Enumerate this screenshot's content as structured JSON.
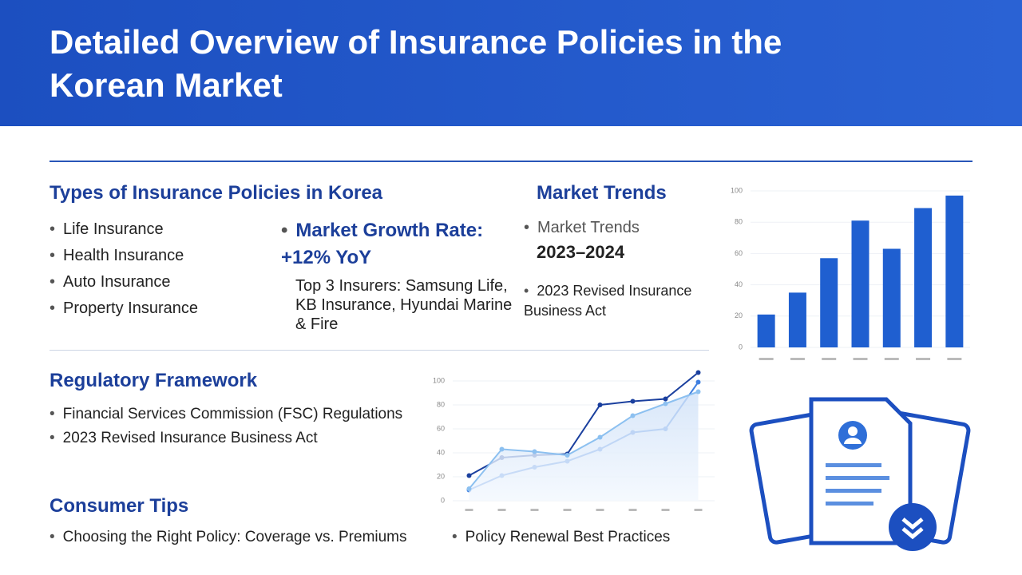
{
  "header": {
    "title": "Detailed Overview of Insurance Policies in the Korean Market"
  },
  "types": {
    "heading": "Types of Insurance Policies in Korea",
    "items": [
      "Life Insurance",
      "Health Insurance",
      "Auto Insurance",
      "Property Insurance"
    ]
  },
  "growth": {
    "headline": "Market Growth Rate: +12% YoY",
    "detail": "Top 3 Insurers: Samsung Life, KB Insurance, Hyundai Marine & Fire"
  },
  "trends": {
    "heading": "Market Trends",
    "items": [
      {
        "title": "Market Trends",
        "subtitle": "2023–2024"
      },
      {
        "title": "2023 Revised Insurance Business Act"
      }
    ]
  },
  "regulatory": {
    "heading": "Regulatory Framework",
    "items": [
      "Financial Services Commission (FSC) Regulations",
      "2023 Revised Insurance Business Act"
    ]
  },
  "tips": {
    "heading": "Consumer Tips",
    "items": [
      "Choosing the Right Policy: Coverage vs. Premiums",
      "Policy Renewal Best Practices"
    ]
  },
  "chart_data": [
    {
      "type": "bar",
      "categories": [
        null,
        null,
        null,
        null,
        null,
        null,
        null
      ],
      "values": [
        21,
        35,
        57,
        81,
        63,
        89,
        97
      ],
      "color": "#1f5fd0",
      "ylim": [
        0,
        100
      ],
      "yticks": [
        0,
        20,
        40,
        60,
        80,
        100
      ]
    },
    {
      "type": "line",
      "categories": [
        null,
        null,
        null,
        null,
        null,
        null,
        null,
        null
      ],
      "series": [
        {
          "color": "#1a3f9e",
          "values": [
            21,
            36,
            38,
            39,
            80,
            83,
            85,
            107
          ]
        },
        {
          "color": "#3f7fe0",
          "values": [
            9,
            21,
            28,
            33,
            43,
            57,
            60,
            99
          ]
        },
        {
          "color": "#8cc0f0",
          "values": [
            10,
            43,
            41,
            38,
            53,
            71,
            81,
            91
          ]
        }
      ],
      "ylim": [
        0,
        110
      ],
      "yticks": [
        0,
        20,
        40,
        60,
        80,
        100
      ]
    }
  ]
}
